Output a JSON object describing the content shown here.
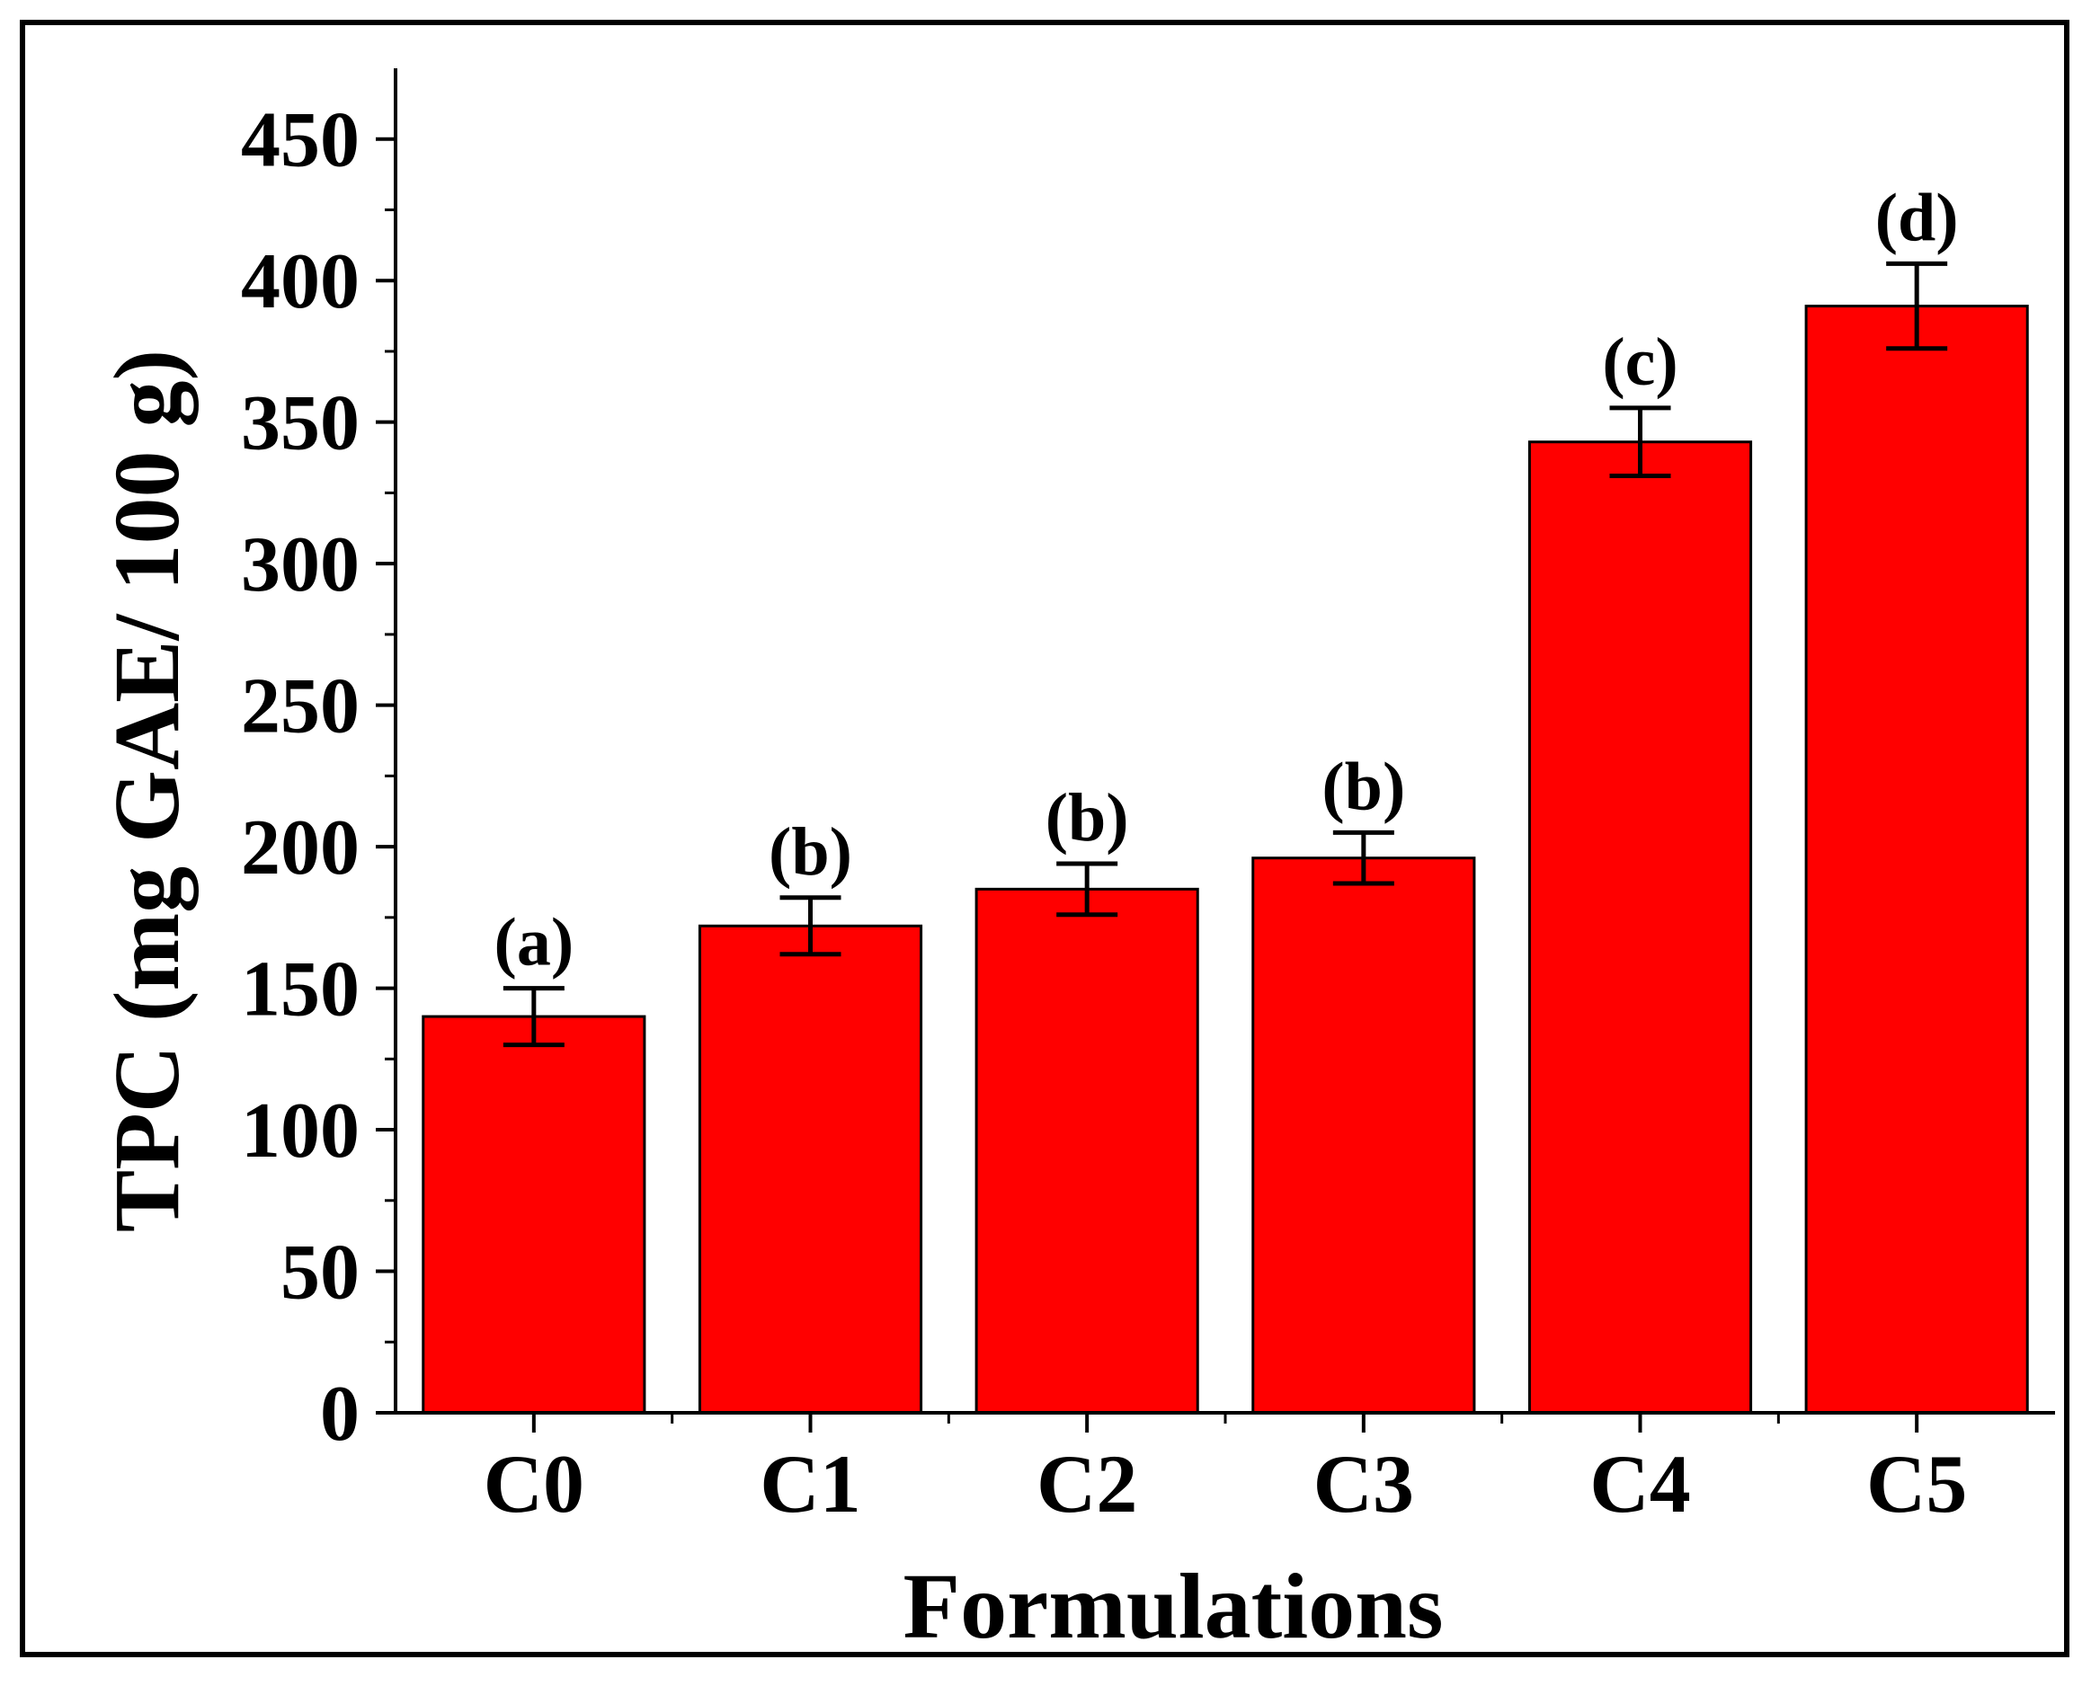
{
  "chart_data": {
    "type": "bar",
    "xlabel": "Formulations",
    "ylabel": "TPC (mg GAE/ 100 g)",
    "categories": [
      "C0",
      "C1",
      "C2",
      "C3",
      "C4",
      "C5"
    ],
    "values": [
      140,
      172,
      185,
      196,
      343,
      391
    ],
    "errors": [
      10,
      10,
      9,
      9,
      12,
      15
    ],
    "significance_labels": [
      "(a)",
      "(b)",
      "(b)",
      "(b)",
      "(c)",
      "(d)"
    ],
    "ylim": [
      0,
      475
    ],
    "yticks": [
      0,
      50,
      100,
      150,
      200,
      250,
      300,
      350,
      400,
      450
    ],
    "bar_color": "#ff0000",
    "grid": false
  }
}
